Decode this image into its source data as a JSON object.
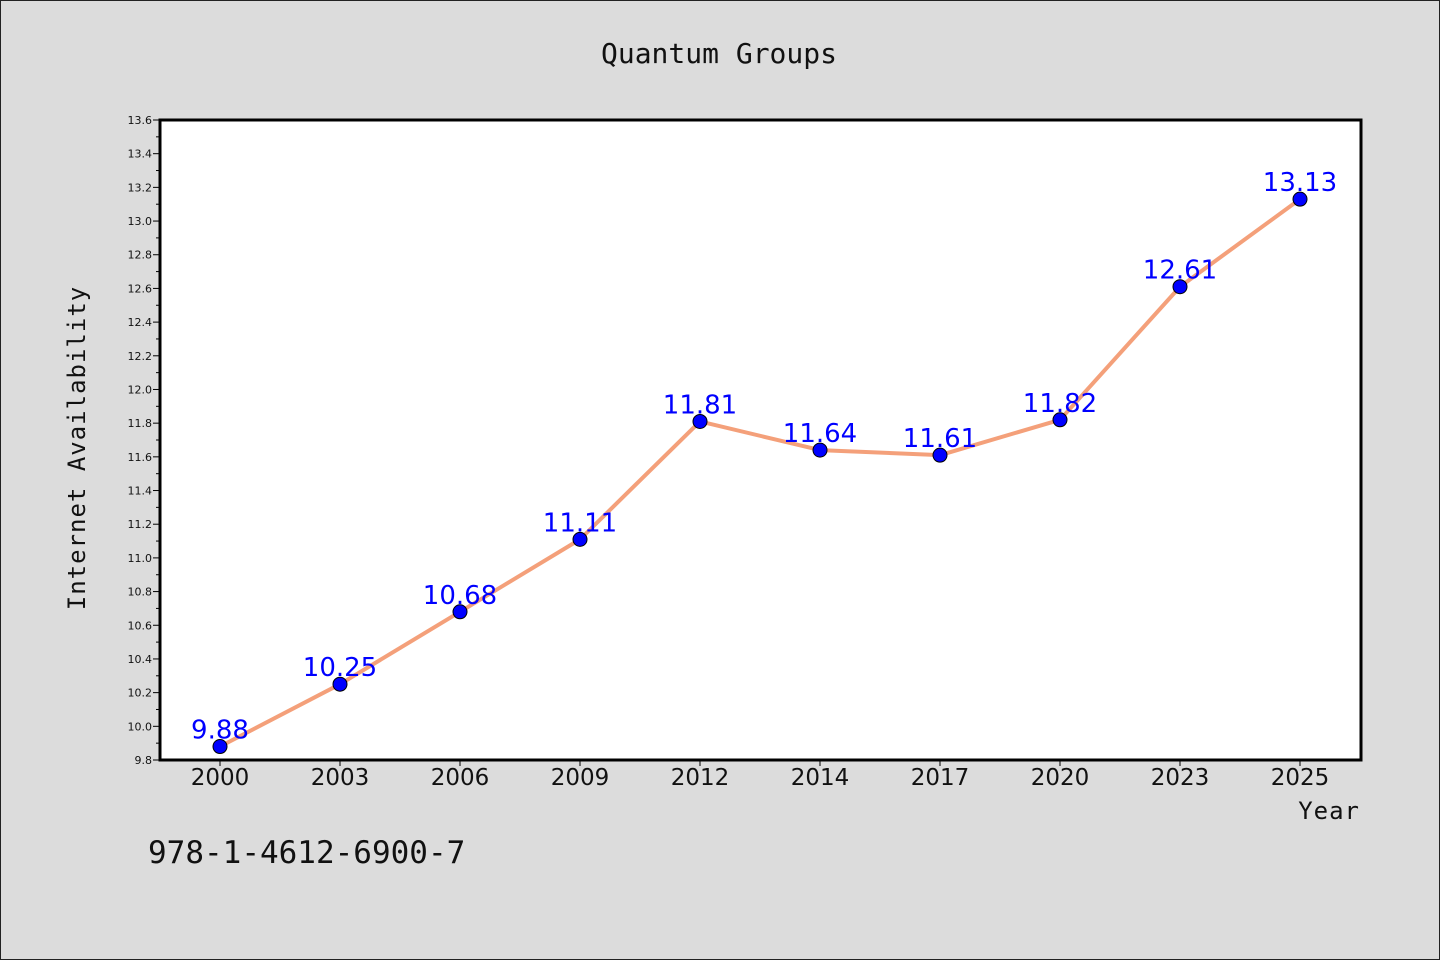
{
  "chart_data": {
    "type": "line",
    "title": "Quantum Groups",
    "xlabel": "Year",
    "ylabel": "Internet Availability",
    "categories": [
      "2000",
      "2003",
      "2006",
      "2009",
      "2012",
      "2014",
      "2017",
      "2020",
      "2023",
      "2025"
    ],
    "series": [
      {
        "values": [
          9.88,
          10.25,
          10.68,
          11.11,
          11.81,
          11.64,
          11.61,
          11.82,
          12.61,
          13.13
        ]
      }
    ],
    "data_labels": [
      "9.88",
      "10.25",
      "10.68",
      "11.11",
      "11.81",
      "11.64",
      "11.61",
      "11.82",
      "12.61",
      "13.13"
    ],
    "ylim": [
      9.8,
      13.6
    ],
    "yticks": [
      "9.8",
      "10.0",
      "10.2",
      "10.4",
      "10.6",
      "10.8",
      "11.0",
      "11.2",
      "11.4",
      "11.6",
      "11.8",
      "12.0",
      "12.2",
      "12.4",
      "12.6",
      "12.8",
      "13.0",
      "13.2",
      "13.4",
      "13.6"
    ],
    "grid": false,
    "line_color": "#f4a07a",
    "marker_color": "#0000ff",
    "label_color": "#0000ff"
  },
  "annotation": {
    "isbn": "978-1-4612-6900-7"
  }
}
